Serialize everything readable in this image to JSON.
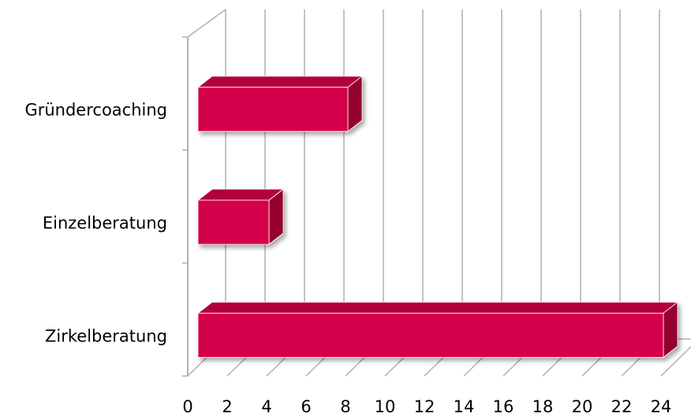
{
  "chart_data": {
    "type": "bar",
    "orientation": "horizontal",
    "style": "3d",
    "categories": [
      "Gründercoaching",
      "Einzelberatung",
      "Zirkelberatung"
    ],
    "values": [
      7.6,
      3.6,
      23.6
    ],
    "xlim": [
      0,
      24
    ],
    "x_ticks": [
      "0",
      "2",
      "4",
      "6",
      "8",
      "10",
      "12",
      "14",
      "16",
      "18",
      "20",
      "22",
      "24"
    ],
    "grid": true,
    "colors": {
      "bar_front": "#d5004c",
      "bar_top": "#b3003c",
      "bar_side": "#96002f",
      "gridline": "#b0b0b0"
    }
  }
}
